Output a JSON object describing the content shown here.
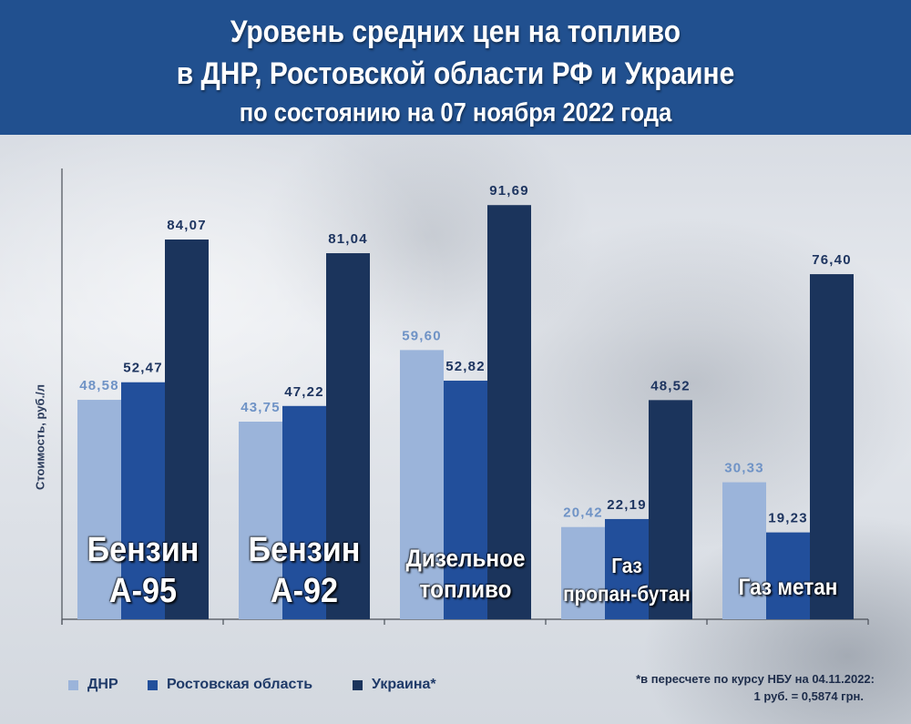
{
  "chart_data": {
    "type": "bar",
    "title": "Уровень средних цен на топливо\nв ДНР, Ростовской области РФ и Украине",
    "subtitle": "по состоянию на 07 ноября 2022 года",
    "xlabel": "",
    "ylabel": "Стоимость, руб./л",
    "ylim": [
      0,
      100
    ],
    "grid": false,
    "legend": "bottom-left",
    "categories": [
      "Бензин\nА-95",
      "Бензин\nА-92",
      "Дизельное\nтопливо",
      "Газ\nпропан-бутан",
      "Газ метан"
    ],
    "series": [
      {
        "name": "ДНР",
        "color": "#9bb4da",
        "label_color": "#6f93c6",
        "values": [
          48.58,
          43.75,
          59.6,
          20.42,
          30.33
        ]
      },
      {
        "name": "Ростовская область",
        "color": "#224f9b",
        "label_color": "#1e3560",
        "values": [
          52.47,
          47.22,
          52.82,
          22.19,
          19.23
        ]
      },
      {
        "name": "Украина*",
        "color": "#1b345c",
        "label_color": "#1e3560",
        "values": [
          84.07,
          81.04,
          91.69,
          48.52,
          76.4
        ]
      }
    ],
    "annotations": [
      "*в пересчете по курсу НБУ на 04.11.2022:",
      "1 руб. = 0,5874 грн."
    ]
  }
}
